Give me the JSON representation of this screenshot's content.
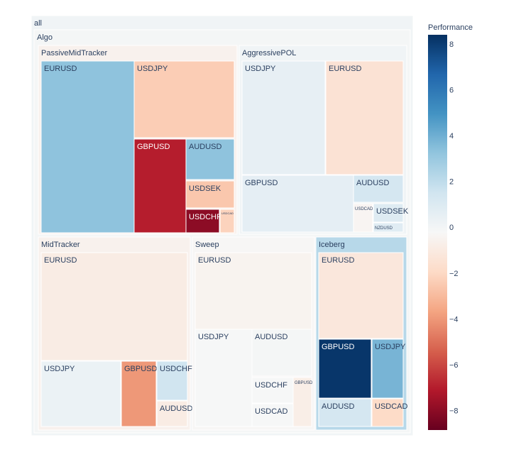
{
  "chart_data": {
    "type": "treemap",
    "title": "",
    "root": "all",
    "color_metric": "Performance",
    "colorbar": {
      "title": "Performance",
      "range": [
        -8.85,
        8.4
      ],
      "ticks": [
        8,
        6,
        4,
        2,
        0,
        -2,
        -4,
        -6,
        -8
      ],
      "tick_labels": [
        "8",
        "6",
        "4",
        "2",
        "0",
        "−2",
        "−4",
        "−6",
        "−8"
      ],
      "colorscale": "RdBu"
    },
    "nodes": [
      {
        "id": "all",
        "label": "all",
        "parent": "",
        "performance": 0.1
      },
      {
        "id": "Algo",
        "label": "Algo",
        "parent": "all",
        "performance": -0.1
      },
      {
        "id": "PassiveMidTracker",
        "label": "PassiveMidTracker",
        "parent": "Algo",
        "performance": -0.6
      },
      {
        "id": "PMT-EURUSD",
        "label": "EURUSD",
        "parent": "PassiveMidTracker",
        "performance": 3.3
      },
      {
        "id": "PMT-USDJPY",
        "label": "USDJPY",
        "parent": "PassiveMidTracker",
        "performance": -2.4
      },
      {
        "id": "PMT-GBPUSD",
        "label": "GBPUSD",
        "parent": "PassiveMidTracker",
        "performance": -7.0
      },
      {
        "id": "PMT-AUDUSD",
        "label": "AUDUSD",
        "parent": "PassiveMidTracker",
        "performance": 3.3
      },
      {
        "id": "PMT-USDSEK",
        "label": "USDSEK",
        "parent": "PassiveMidTracker",
        "performance": -2.6
      },
      {
        "id": "PMT-USDCHF",
        "label": "USDCHF",
        "parent": "PassiveMidTracker",
        "performance": -8.0
      },
      {
        "id": "PMT-USDCAD",
        "label": "USDCAD",
        "parent": "PassiveMidTracker",
        "performance": -2.2
      },
      {
        "id": "AggressivePOL",
        "label": "AggressivePOL",
        "parent": "Algo",
        "performance": 0.1
      },
      {
        "id": "AP-USDJPY",
        "label": "USDJPY",
        "parent": "AggressivePOL",
        "performance": 0.5
      },
      {
        "id": "AP-EURUSD",
        "label": "EURUSD",
        "parent": "AggressivePOL",
        "performance": -1.5
      },
      {
        "id": "AP-GBPUSD",
        "label": "GBPUSD",
        "parent": "AggressivePOL",
        "performance": 0.6
      },
      {
        "id": "AP-AUDUSD",
        "label": "AUDUSD",
        "parent": "AggressivePOL",
        "performance": 1.3
      },
      {
        "id": "AP-USDCAD",
        "label": "USDCAD",
        "parent": "AggressivePOL",
        "performance": -0.4
      },
      {
        "id": "AP-USDSEK",
        "label": "USDSEK",
        "parent": "AggressivePOL",
        "performance": 0.9
      },
      {
        "id": "AP-NZDUSD",
        "label": "NZDUSD",
        "parent": "AggressivePOL",
        "performance": 0.8
      },
      {
        "id": "MidTracker",
        "label": "MidTracker",
        "parent": "Algo",
        "performance": -0.6
      },
      {
        "id": "MT-EURUSD",
        "label": "EURUSD",
        "parent": "MidTracker",
        "performance": -0.9
      },
      {
        "id": "MT-USDJPY",
        "label": "USDJPY",
        "parent": "MidTracker",
        "performance": 0.3
      },
      {
        "id": "MT-GBPUSD",
        "label": "GBPUSD",
        "parent": "MidTracker",
        "performance": -4.0
      },
      {
        "id": "MT-USDCHF",
        "label": "USDCHF",
        "parent": "MidTracker",
        "performance": 1.5
      },
      {
        "id": "MT-AUDUSD",
        "label": "AUDUSD",
        "parent": "MidTracker",
        "performance": -0.9
      },
      {
        "id": "Sweep",
        "label": "Sweep",
        "parent": "Algo",
        "performance": -0.3
      },
      {
        "id": "SW-EURUSD",
        "label": "EURUSD",
        "parent": "Sweep",
        "performance": -0.5
      },
      {
        "id": "SW-USDJPY",
        "label": "USDJPY",
        "parent": "Sweep",
        "performance": -0.2
      },
      {
        "id": "SW-AUDUSD",
        "label": "AUDUSD",
        "parent": "Sweep",
        "performance": -0.1
      },
      {
        "id": "SW-USDCHF",
        "label": "USDCHF",
        "parent": "Sweep",
        "performance": -0.2
      },
      {
        "id": "SW-GBPUSD",
        "label": "GBPUSD",
        "parent": "Sweep",
        "performance": -0.8
      },
      {
        "id": "SW-USDCAD",
        "label": "USDCAD",
        "parent": "Sweep",
        "performance": -0.2
      },
      {
        "id": "Iceberg",
        "label": "Iceberg",
        "parent": "Algo",
        "performance": 2.2
      },
      {
        "id": "IB-EURUSD",
        "label": "EURUSD",
        "parent": "Iceberg",
        "performance": -1.2
      },
      {
        "id": "IB-GBPUSD",
        "label": "GBPUSD",
        "parent": "Iceberg",
        "performance": 8.2
      },
      {
        "id": "IB-USDJPY",
        "label": "USDJPY",
        "parent": "Iceberg",
        "performance": 3.8
      },
      {
        "id": "IB-AUDUSD",
        "label": "AUDUSD",
        "parent": "Iceberg",
        "performance": 1.3
      },
      {
        "id": "IB-USDCAD",
        "label": "USDCAD",
        "parent": "Iceberg",
        "performance": -1.9
      }
    ]
  }
}
